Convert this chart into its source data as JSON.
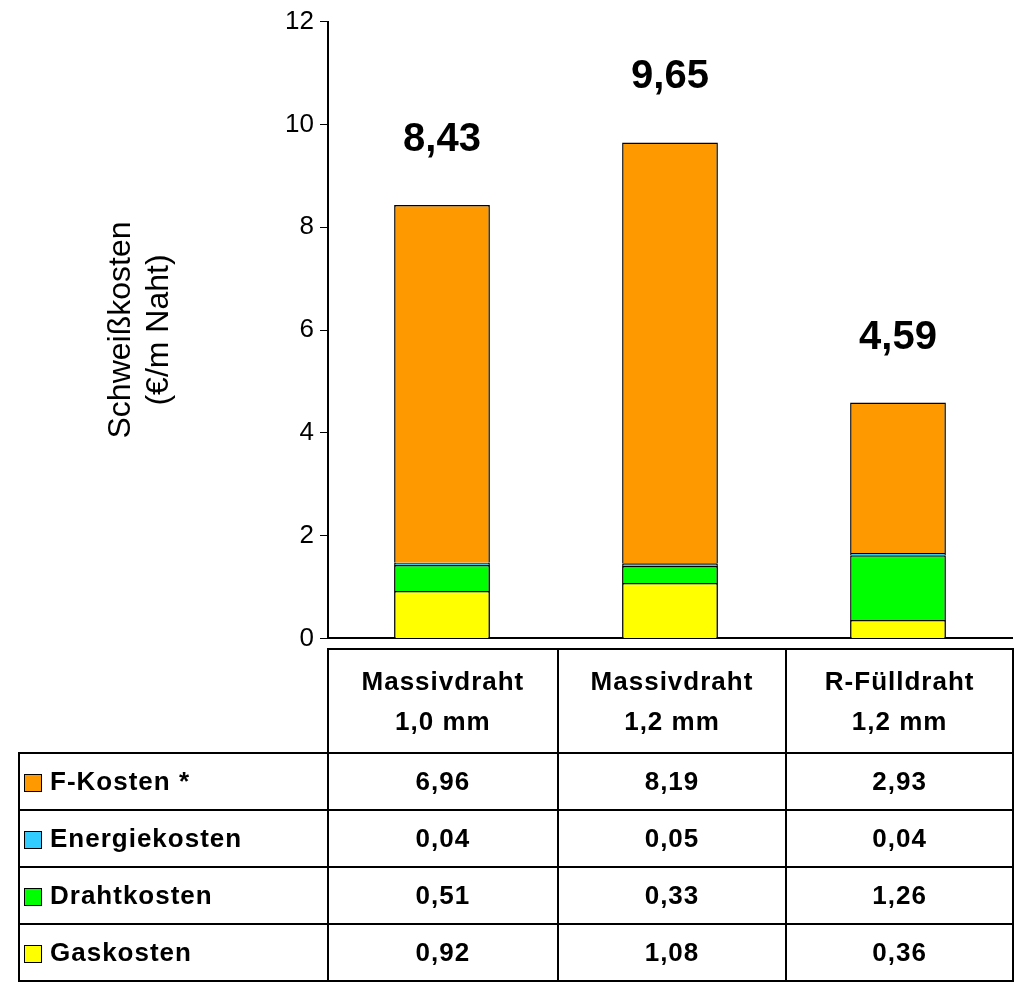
{
  "chart_data": {
    "type": "bar",
    "stacked": true,
    "ylabel": "Schweißkosten (€/m Naht)",
    "categories": [
      "Massivdraht 1,0 mm",
      "Massivdraht 1,2 mm",
      "R-Fülldraht 1,2 mm"
    ],
    "series": [
      {
        "name": "Gaskosten",
        "color": "#ffff00",
        "values": [
          0.92,
          1.08,
          0.36
        ],
        "value_labels": [
          "0,92",
          "1,08",
          "0,36"
        ]
      },
      {
        "name": "Drahtkosten",
        "color": "#00ff00",
        "values": [
          0.51,
          0.33,
          1.26
        ],
        "value_labels": [
          "0,51",
          "0,33",
          "1,26"
        ]
      },
      {
        "name": "Energiekosten",
        "color": "#33ccff",
        "values": [
          0.04,
          0.05,
          0.04
        ],
        "value_labels": [
          "0,04",
          "0,05",
          "0,04"
        ]
      },
      {
        "name": "F-Kosten *",
        "color": "#ff9900",
        "values": [
          6.96,
          8.19,
          2.93
        ],
        "value_labels": [
          "6,96",
          "8,19",
          "2,93"
        ]
      }
    ],
    "totals": [
      "8,43",
      "9,65",
      "4,59"
    ],
    "ylim": [
      0,
      12
    ],
    "yticks": [
      0,
      2,
      4,
      6,
      8,
      10,
      12
    ],
    "grid": false,
    "legend": "bottom left"
  }
}
